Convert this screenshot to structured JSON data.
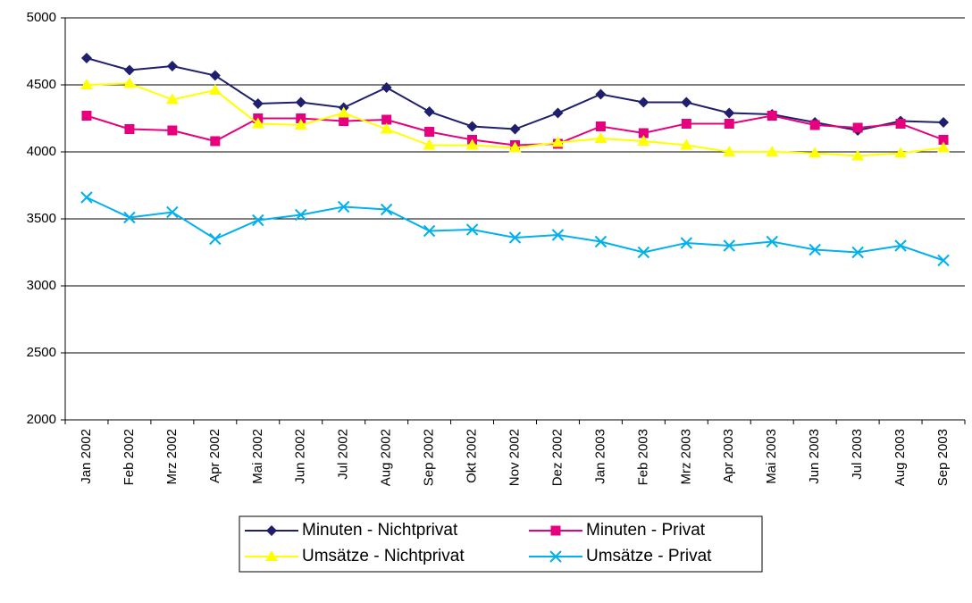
{
  "chart_data": {
    "type": "line",
    "categories": [
      "Jan 2002",
      "Feb 2002",
      "Mrz 2002",
      "Apr 2002",
      "Mai 2002",
      "Jun 2002",
      "Jul 2002",
      "Aug 2002",
      "Sep 2002",
      "Okt 2002",
      "Nov 2002",
      "Dez 2002",
      "Jan 2003",
      "Feb 2003",
      "Mrz 2003",
      "Apr 2003",
      "Mai 2003",
      "Jun 2003",
      "Jul 2003",
      "Aug 2003",
      "Sep 2003"
    ],
    "series": [
      {
        "name": "Minuten - Nichtprivat",
        "color": "#1f1f6e",
        "marker": "diamond",
        "values": [
          4700,
          4610,
          4640,
          4570,
          4360,
          4370,
          4330,
          4480,
          4300,
          4190,
          4170,
          4290,
          4430,
          4370,
          4370,
          4290,
          4280,
          4220,
          4160,
          4230,
          4220
        ]
      },
      {
        "name": "Minuten - Privat",
        "color": "#e6007e",
        "marker": "square",
        "values": [
          4270,
          4170,
          4160,
          4080,
          4250,
          4250,
          4230,
          4240,
          4150,
          4090,
          4050,
          4060,
          4190,
          4140,
          4210,
          4210,
          4270,
          4200,
          4180,
          4210,
          4090
        ]
      },
      {
        "name": "Umsätze - Nichtprivat",
        "color": "#ffff00",
        "marker": "triangle",
        "values": [
          4500,
          4510,
          4390,
          4460,
          4210,
          4200,
          4290,
          4170,
          4050,
          4050,
          4030,
          4070,
          4100,
          4080,
          4050,
          4000,
          4000,
          3990,
          3970,
          3990,
          4030
        ]
      },
      {
        "name": "Umsätze - Privat",
        "color": "#00b0f0",
        "marker": "x",
        "values": [
          3660,
          3510,
          3550,
          3350,
          3490,
          3530,
          3590,
          3570,
          3410,
          3420,
          3360,
          3380,
          3330,
          3250,
          3320,
          3300,
          3330,
          3270,
          3250,
          3300,
          3190
        ]
      }
    ],
    "ylim": [
      2000,
      5000
    ],
    "yticks": [
      2000,
      2500,
      3000,
      3500,
      4000,
      4500,
      5000
    ],
    "grid": true
  }
}
